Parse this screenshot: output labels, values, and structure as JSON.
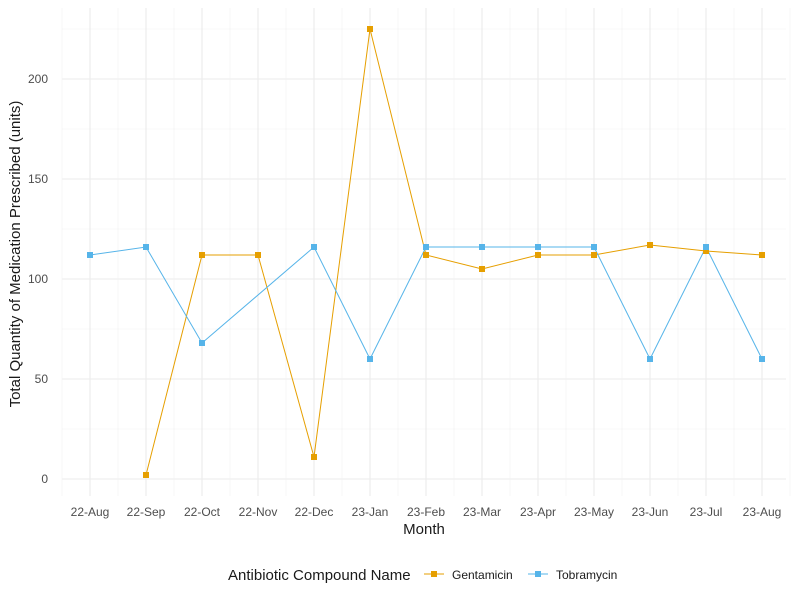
{
  "chart_data": {
    "type": "line",
    "x": [
      "22-Aug",
      "22-Sep",
      "22-Oct",
      "22-Nov",
      "22-Dec",
      "23-Jan",
      "23-Feb",
      "23-Mar",
      "23-Apr",
      "23-May",
      "23-Jun",
      "23-Jul",
      "23-Aug"
    ],
    "xlabel": "Month",
    "ylabel": "Total Quantity of Medication Prescribed (units)",
    "ylim": [
      -7,
      228
    ],
    "yticks": [
      0,
      50,
      100,
      150,
      200
    ],
    "grid": true,
    "legend": {
      "title": "Antibiotic Compound Name",
      "position": "bottom"
    },
    "series": [
      {
        "name": "Gentamicin",
        "color": "#E69F00",
        "values": [
          null,
          2,
          112,
          112,
          11,
          225,
          112,
          105,
          112,
          112,
          117,
          114,
          112
        ]
      },
      {
        "name": "Tobramycin",
        "color": "#56B4E9",
        "values": [
          112,
          116,
          68,
          null,
          116,
          60,
          116,
          116,
          116,
          116,
          60,
          116,
          60
        ]
      }
    ]
  }
}
